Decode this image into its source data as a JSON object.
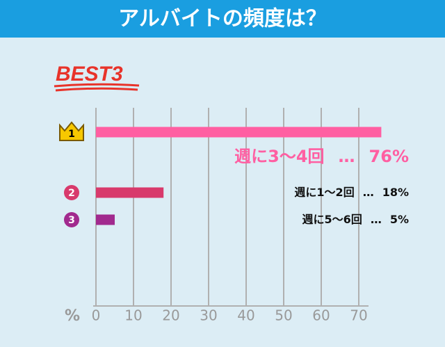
{
  "chart_data": {
    "type": "barh",
    "title": "アルバイトの頻度は？",
    "subtitle": "BEST3",
    "xlabel": "%",
    "ranks": [
      1,
      2,
      3
    ],
    "categories": [
      "週に3～4回",
      "週に1～2回",
      "週に5～6回"
    ],
    "values": [
      76,
      18,
      5
    ],
    "value_labels": [
      "76%",
      "18%",
      "5%"
    ],
    "label_separator": "…",
    "colors": [
      "#ff5fa2",
      "#d83a6c",
      "#a12a8e"
    ],
    "xlim": [
      0,
      70
    ],
    "xticks": [
      0,
      10,
      20,
      30,
      40,
      50,
      60,
      70
    ],
    "grid": true
  }
}
